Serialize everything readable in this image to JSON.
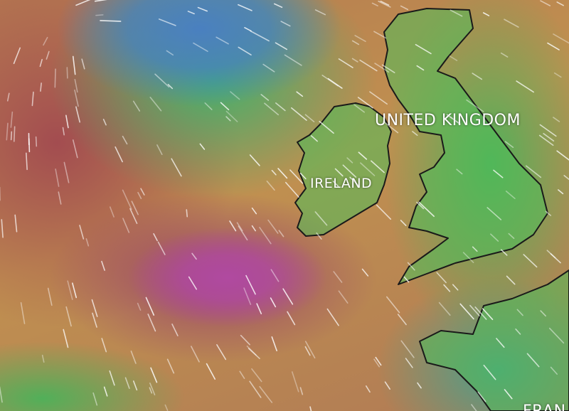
{
  "map": {
    "layer": "wind",
    "labels": {
      "uk": "UNITED KINGDOM",
      "ireland": "IRELAND",
      "france": "FRAN"
    },
    "colors": {
      "calm": "#4a80c0",
      "moderate": "#46b45a",
      "strong": "#c09050",
      "very_strong": "#b04aa0",
      "coastline": "#1a1a1a",
      "particles": "#ffffff"
    }
  }
}
